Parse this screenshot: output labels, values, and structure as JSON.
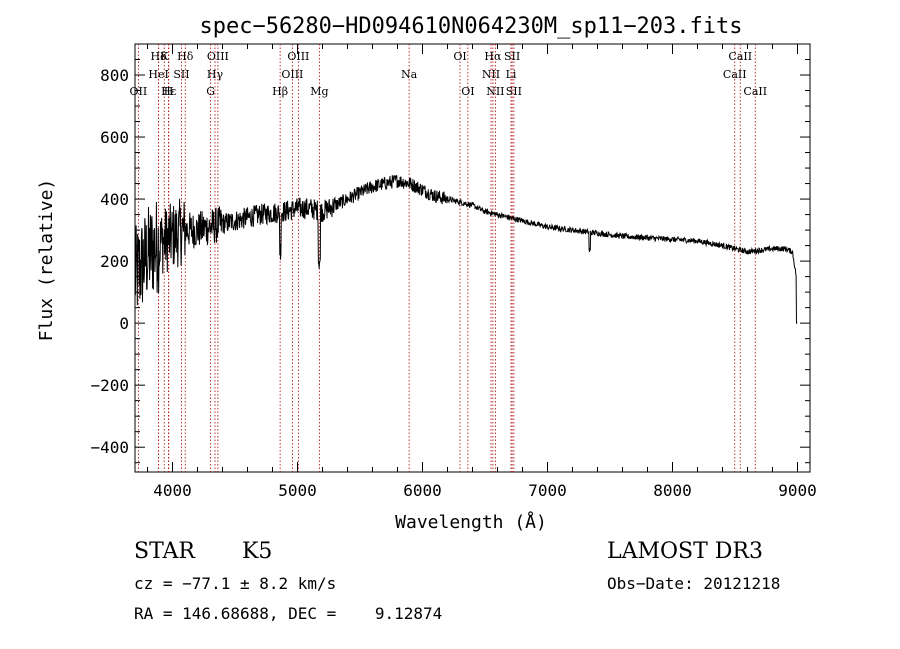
{
  "chart_data": {
    "type": "line",
    "title": "spec−56280−HD094610N064230M_sp11−203.fits",
    "xlabel": "Wavelength (Å)",
    "ylabel": "Flux (relative)",
    "xlim": [
      3700,
      9100
    ],
    "ylim": [
      -480,
      900
    ],
    "xticks": [
      4000,
      5000,
      6000,
      7000,
      8000,
      9000
    ],
    "xtick_labels": [
      "4000",
      "5000",
      "6000",
      "7000",
      "8000",
      "9000"
    ],
    "yticks": [
      -400,
      -200,
      0,
      200,
      400,
      600,
      800
    ],
    "ytick_labels": [
      "−400",
      "−200",
      "0",
      "200",
      "400",
      "600",
      "800"
    ],
    "continuum": [
      [
        3700,
        150
      ],
      [
        3800,
        220
      ],
      [
        3900,
        260
      ],
      [
        4000,
        280
      ],
      [
        4100,
        300
      ],
      [
        4200,
        300
      ],
      [
        4300,
        310
      ],
      [
        4400,
        320
      ],
      [
        4500,
        330
      ],
      [
        4600,
        340
      ],
      [
        4700,
        350
      ],
      [
        4800,
        355
      ],
      [
        4900,
        360
      ],
      [
        5000,
        370
      ],
      [
        5100,
        370
      ],
      [
        5200,
        360
      ],
      [
        5300,
        380
      ],
      [
        5400,
        400
      ],
      [
        5500,
        420
      ],
      [
        5600,
        440
      ],
      [
        5700,
        450
      ],
      [
        5800,
        460
      ],
      [
        5900,
        450
      ],
      [
        6000,
        430
      ],
      [
        6100,
        410
      ],
      [
        6200,
        400
      ],
      [
        6300,
        390
      ],
      [
        6400,
        380
      ],
      [
        6500,
        360
      ],
      [
        6600,
        350
      ],
      [
        6700,
        340
      ],
      [
        6800,
        330
      ],
      [
        6900,
        320
      ],
      [
        7000,
        310
      ],
      [
        7200,
        300
      ],
      [
        7400,
        290
      ],
      [
        7600,
        280
      ],
      [
        7800,
        275
      ],
      [
        8000,
        270
      ],
      [
        8200,
        265
      ],
      [
        8400,
        250
      ],
      [
        8500,
        240
      ],
      [
        8600,
        230
      ],
      [
        8700,
        235
      ],
      [
        8800,
        240
      ],
      [
        8900,
        240
      ],
      [
        8960,
        230
      ],
      [
        8990,
        150
      ],
      [
        9000,
        0
      ]
    ],
    "lines": [
      {
        "label": "Hδ",
        "wave": 3889,
        "row": 0
      },
      {
        "label": "K",
        "wave": 3934,
        "row": 0
      },
      {
        "label": "Hδ",
        "wave": 4102,
        "row": 0
      },
      {
        "label": "OIII",
        "wave": 4363,
        "row": 0
      },
      {
        "label": "OIII",
        "wave": 5007,
        "row": 0
      },
      {
        "label": "OI",
        "wave": 6300,
        "row": 0
      },
      {
        "label": "Hα",
        "wave": 6563,
        "row": 0
      },
      {
        "label": "SII",
        "wave": 6717,
        "row": 0
      },
      {
        "label": "CaII",
        "wave": 8542,
        "row": 0
      },
      {
        "label": "HeI",
        "wave": 3889,
        "row": 1
      },
      {
        "label": "SII",
        "wave": 4072,
        "row": 1
      },
      {
        "label": "Hγ",
        "wave": 4340,
        "row": 1
      },
      {
        "label": "OIII",
        "wave": 4959,
        "row": 1
      },
      {
        "label": "Na",
        "wave": 5893,
        "row": 1
      },
      {
        "label": "NII",
        "wave": 6548,
        "row": 1
      },
      {
        "label": "Li",
        "wave": 6708,
        "row": 1
      },
      {
        "label": "CaII",
        "wave": 8498,
        "row": 1
      },
      {
        "label": "OII",
        "wave": 3727,
        "row": 2
      },
      {
        "label": "Hε",
        "wave": 3970,
        "row": 2
      },
      {
        "label": "H",
        "wave": 3968,
        "row": 2
      },
      {
        "label": "G",
        "wave": 4305,
        "row": 2
      },
      {
        "label": "Hβ",
        "wave": 4861,
        "row": 2
      },
      {
        "label": "Mg",
        "wave": 5175,
        "row": 2
      },
      {
        "label": "OI",
        "wave": 6363,
        "row": 2
      },
      {
        "label": "NII",
        "wave": 6583,
        "row": 2
      },
      {
        "label": "SII",
        "wave": 6731,
        "row": 2
      },
      {
        "label": "CaII",
        "wave": 8662,
        "row": 2
      }
    ],
    "line_colors": {
      "spectrum": "#000000",
      "markers": "#b00000"
    }
  },
  "info": {
    "object_class": "STAR",
    "subclass": "K5",
    "cz": "cz = −77.1 ± 8.2 km/s",
    "coords": "RA = 146.68688, DEC =    9.12874",
    "survey": "LAMOST DR3",
    "obs_date": "Obs−Date: 20121218"
  }
}
